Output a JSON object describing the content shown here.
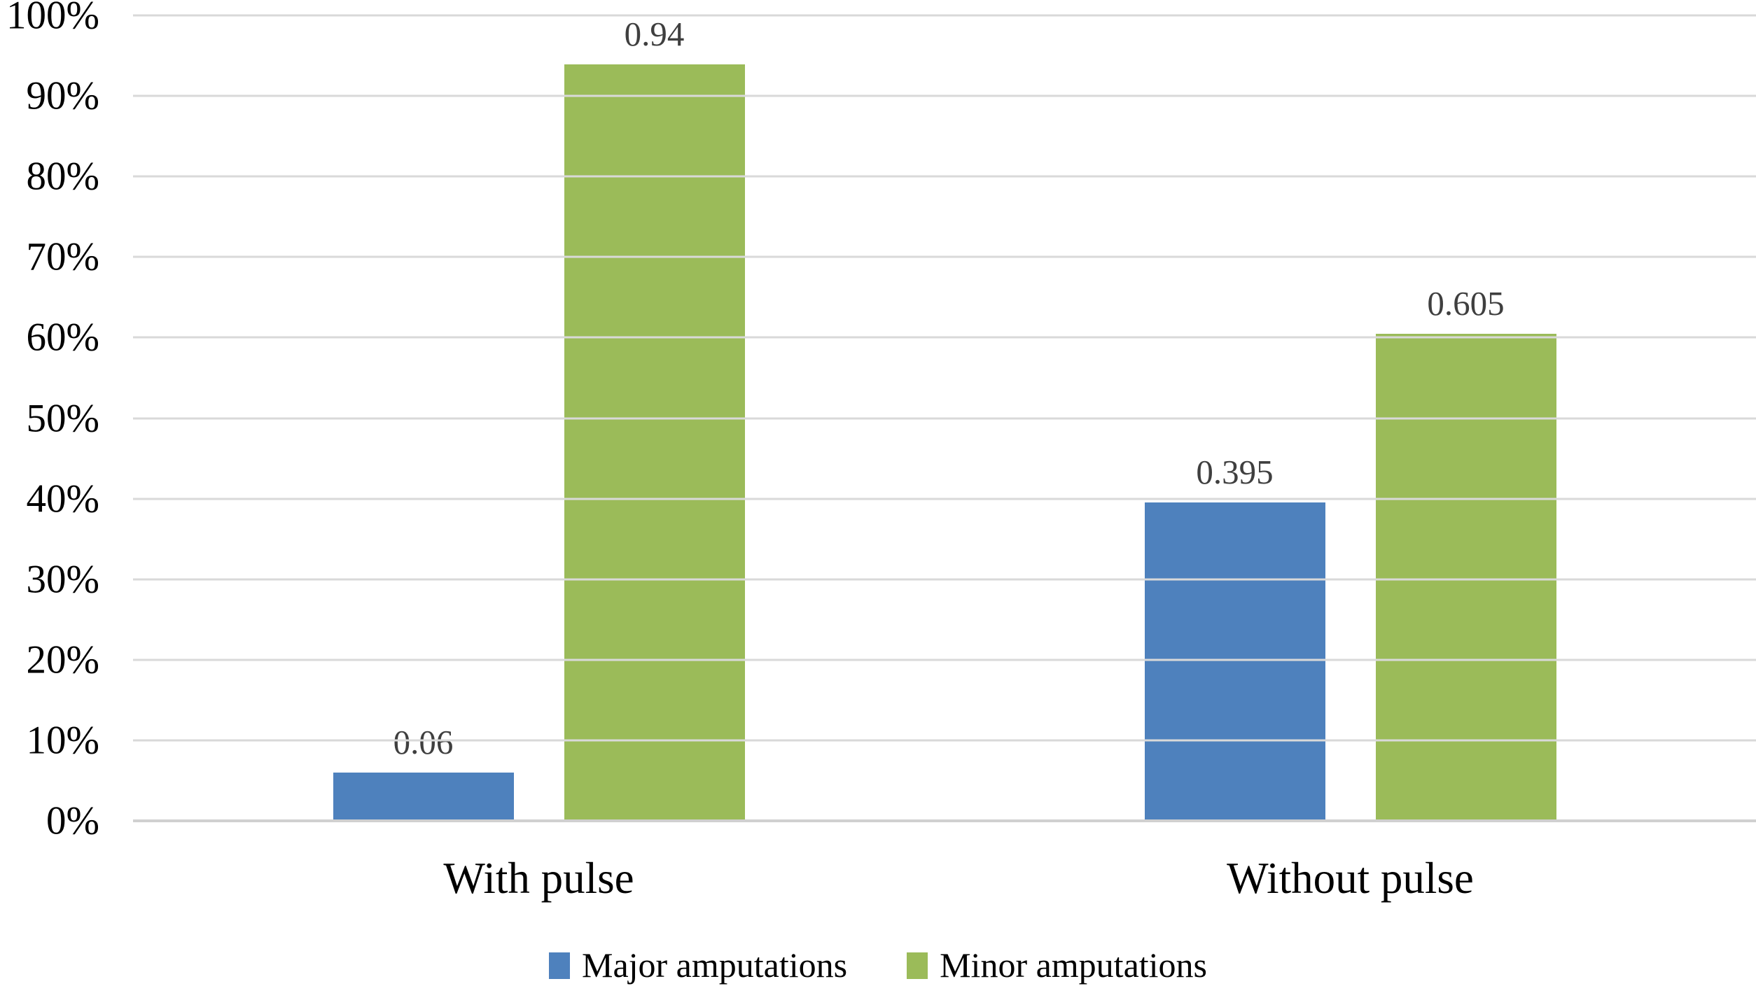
{
  "chart_data": {
    "type": "bar",
    "categories": [
      "With pulse",
      "Without pulse"
    ],
    "series": [
      {
        "name": "Major amputations",
        "color": "#4E81BD",
        "values": [
          0.06,
          0.395
        ],
        "value_labels": [
          "0.06",
          "0.395"
        ]
      },
      {
        "name": "Minor amputations",
        "color": "#9BBB59",
        "values": [
          0.94,
          0.605
        ],
        "value_labels": [
          "0.94",
          "0.605"
        ]
      }
    ],
    "title": "",
    "xlabel": "",
    "ylabel": "",
    "ylim": [
      0,
      1
    ],
    "yticks": [
      "0%",
      "10%",
      "20%",
      "30%",
      "40%",
      "50%",
      "60%",
      "70%",
      "80%",
      "90%",
      "100%"
    ],
    "grid": true,
    "legend_position": "bottom"
  },
  "colors": {
    "gridline": "#d9d9d9",
    "baseline": "#d0d0d0",
    "data_label": "#3f3f3f",
    "axis_text": "#000000",
    "background": "#ffffff"
  }
}
